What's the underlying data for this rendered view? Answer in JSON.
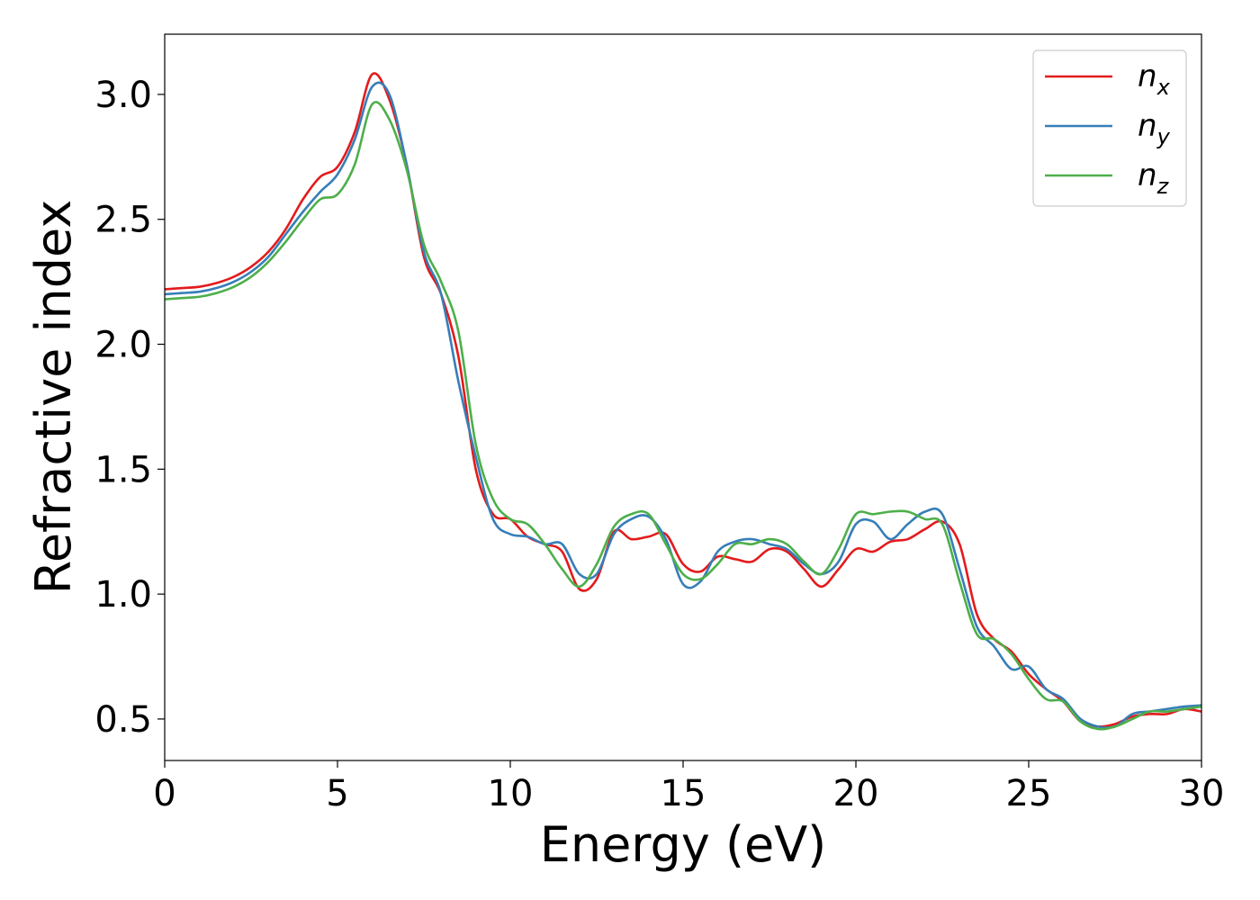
{
  "chart_data": {
    "type": "line",
    "xlabel": "Energy (eV)",
    "ylabel": "Refractive index",
    "x": [
      0,
      0.5,
      1,
      1.5,
      2,
      2.5,
      3,
      3.5,
      4,
      4.5,
      5,
      5.5,
      6,
      6.5,
      7,
      7.5,
      8,
      8.5,
      9,
      9.5,
      10,
      10.5,
      11,
      11.5,
      12,
      12.5,
      13,
      13.5,
      14,
      14.5,
      15,
      15.5,
      16,
      16.5,
      17,
      17.5,
      18,
      18.5,
      19,
      19.5,
      20,
      20.5,
      21,
      21.5,
      22,
      22.5,
      23,
      23.5,
      24,
      24.5,
      25,
      25.5,
      26,
      26.5,
      27,
      27.5,
      28,
      28.5,
      29,
      29.5,
      30
    ],
    "series": [
      {
        "name": "nx",
        "color": "#e41a1c",
        "values": [
          2.22,
          2.225,
          2.23,
          2.245,
          2.27,
          2.31,
          2.37,
          2.46,
          2.58,
          2.67,
          2.71,
          2.85,
          3.08,
          2.98,
          2.72,
          2.35,
          2.2,
          1.95,
          1.5,
          1.32,
          1.3,
          1.23,
          1.2,
          1.17,
          1.02,
          1.06,
          1.25,
          1.22,
          1.23,
          1.24,
          1.12,
          1.09,
          1.15,
          1.14,
          1.13,
          1.18,
          1.17,
          1.1,
          1.03,
          1.1,
          1.18,
          1.17,
          1.21,
          1.22,
          1.26,
          1.29,
          1.2,
          0.92,
          0.82,
          0.77,
          0.68,
          0.62,
          0.57,
          0.49,
          0.47,
          0.48,
          0.51,
          0.52,
          0.52,
          0.54,
          0.53
        ]
      },
      {
        "name": "ny",
        "color": "#377eb8",
        "values": [
          2.2,
          2.205,
          2.21,
          2.225,
          2.25,
          2.29,
          2.35,
          2.44,
          2.53,
          2.61,
          2.68,
          2.82,
          3.03,
          3.0,
          2.72,
          2.37,
          2.2,
          1.85,
          1.55,
          1.3,
          1.24,
          1.23,
          1.2,
          1.2,
          1.08,
          1.08,
          1.24,
          1.3,
          1.31,
          1.22,
          1.04,
          1.05,
          1.17,
          1.21,
          1.22,
          1.2,
          1.18,
          1.12,
          1.08,
          1.13,
          1.28,
          1.29,
          1.22,
          1.28,
          1.33,
          1.32,
          1.1,
          0.87,
          0.79,
          0.7,
          0.71,
          0.62,
          0.58,
          0.5,
          0.47,
          0.47,
          0.52,
          0.53,
          0.54,
          0.55,
          0.555
        ]
      },
      {
        "name": "nz",
        "color": "#4daf4a",
        "values": [
          2.18,
          2.185,
          2.19,
          2.205,
          2.23,
          2.27,
          2.33,
          2.41,
          2.5,
          2.58,
          2.6,
          2.72,
          2.96,
          2.9,
          2.7,
          2.4,
          2.25,
          2.05,
          1.6,
          1.38,
          1.3,
          1.28,
          1.2,
          1.1,
          1.03,
          1.12,
          1.27,
          1.32,
          1.32,
          1.2,
          1.08,
          1.06,
          1.12,
          1.2,
          1.2,
          1.22,
          1.2,
          1.13,
          1.08,
          1.18,
          1.32,
          1.32,
          1.33,
          1.33,
          1.3,
          1.28,
          1.05,
          0.84,
          0.82,
          0.76,
          0.66,
          0.58,
          0.57,
          0.49,
          0.46,
          0.47,
          0.5,
          0.53,
          0.53,
          0.54,
          0.55
        ]
      }
    ],
    "xlim": [
      0,
      30
    ],
    "xticks": [
      0,
      5,
      10,
      15,
      20,
      25,
      30
    ],
    "ylim": [
      0.334,
      3.241
    ],
    "yticks": [
      0.5,
      {
        "value": 1,
        "label": "1.0"
      },
      1.5,
      {
        "value": 2,
        "label": "2.0"
      },
      2.5,
      {
        "value": 3,
        "label": "3.0"
      }
    ],
    "legend": "upper right",
    "grid": false
  }
}
